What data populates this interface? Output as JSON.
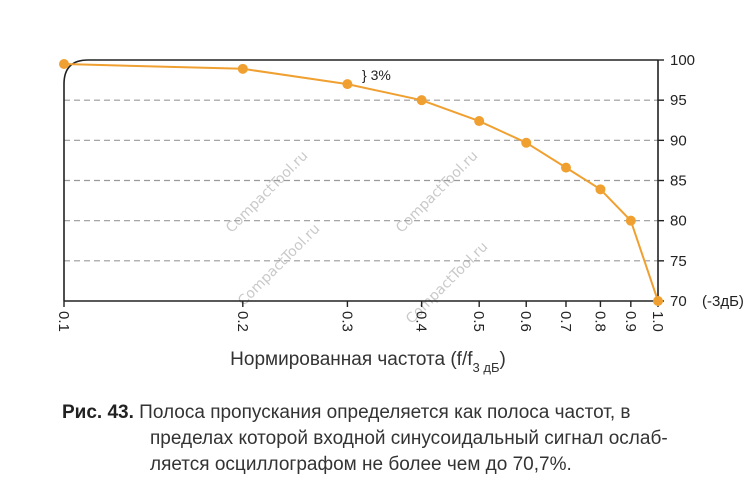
{
  "chart_data": {
    "type": "line",
    "x_scale": "log",
    "xlim": [
      0.1,
      1.0
    ],
    "ylim": [
      70,
      100
    ],
    "x_ticks": [
      "0.1",
      "0.2",
      "0.3",
      "0.4",
      "0.5",
      "0.6",
      "0.7",
      "0.8",
      "0.9",
      "1.0"
    ],
    "y_ticks": [
      "70",
      "75",
      "80",
      "85",
      "90",
      "95",
      "100"
    ],
    "y_tick_suffix_at_70": "(-3дБ)",
    "xlabel_main": "Нормированная частота (f/f",
    "xlabel_sub": "3 дБ",
    "xlabel_end": ")",
    "annotation": "} 3%",
    "grid": "horizontal-dashed",
    "series": [
      {
        "x": [
          0.1,
          0.2,
          0.3,
          0.4,
          0.5,
          0.6,
          0.7,
          0.8,
          0.9,
          1.0
        ],
        "y": [
          99.5,
          98.9,
          97.0,
          95.0,
          92.4,
          89.7,
          86.6,
          83.9,
          80.0,
          70.0
        ]
      }
    ],
    "colors": {
      "line": "#F0A030",
      "marker": "#F0A030",
      "grid": "#9a9a9a",
      "axis": "#222222"
    }
  },
  "watermark": "CompactTool.ru",
  "caption": {
    "label": "Рис. 43.",
    "line1": "Полоса пропускания определяется как полоса частот, в",
    "line2": "пределах которой входной синусоидальный сигнал ослаб-",
    "line3": "ляется осциллографом не более чем до 70,7%."
  }
}
